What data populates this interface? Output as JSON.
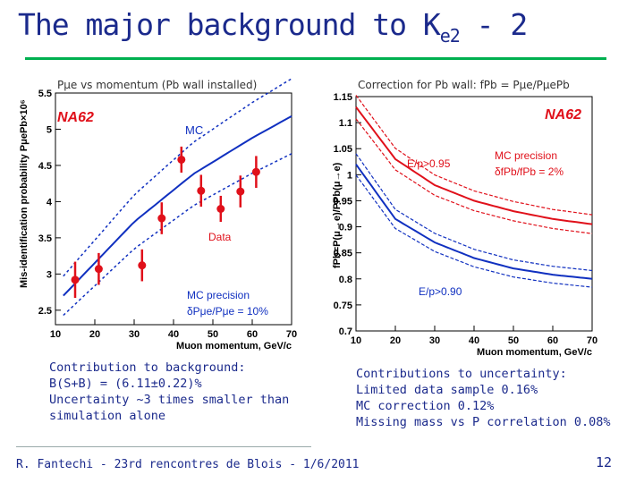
{
  "slide": {
    "title_main": "The major background to K",
    "title_sub": "e2",
    "title_end": " - 2",
    "left_caption": "Pμe vs momentum (Pb wall installed)",
    "right_caption": "Correction for Pb wall: fPb = Pμe/PμePb",
    "left_notes": [
      "Contribution to background:",
      "B(S+B) = (6.11±0.22)%",
      "Uncertainty ~3 times smaller than",
      "simulation alone"
    ],
    "right_notes": [
      "Contributions to uncertainty:",
      "Limited data sample 0.16%",
      "MC correction 0.12%",
      "Missing mass vs P correlation 0.08%"
    ],
    "footer": "R. Fantechi - 23rd rencontres de Blois - 1/6/2011",
    "page_number": "12"
  },
  "colors": {
    "title": "#1b2a8c",
    "rule": "#00b050",
    "data": "#e0101a",
    "mc": "#1030c0"
  },
  "chart_data": [
    {
      "type": "scatter",
      "title": "Pμe vs momentum (Pb wall installed)",
      "ylabel": "Mis-identification probability PμePb×10⁶",
      "xlabel": "Muon momentum, GeV/c",
      "xlim": [
        10,
        70
      ],
      "ylim": [
        2.3,
        5.5
      ],
      "xticks": [
        "10",
        "20",
        "30",
        "40",
        "50",
        "60",
        "70"
      ],
      "yticks": [
        "2.5",
        "3",
        "3.5",
        "4",
        "4.5",
        "5",
        "5.5"
      ],
      "brand": "NA62",
      "mc_label": "MC",
      "data_label": "Data",
      "precision_label_1": "MC precision",
      "precision_label_2": "δPμe/Pμe = 10%",
      "series": [
        {
          "name": "Data",
          "x": [
            15,
            21,
            32,
            37,
            42,
            47,
            52,
            57,
            61
          ],
          "y": [
            2.92,
            3.07,
            3.12,
            3.77,
            4.58,
            4.15,
            3.9,
            4.14,
            4.41
          ],
          "err": [
            0.25,
            0.22,
            0.22,
            0.22,
            0.18,
            0.22,
            0.18,
            0.22,
            0.22
          ]
        },
        {
          "name": "MC",
          "x": [
            12,
            30,
            45,
            60,
            70
          ],
          "y": [
            2.7,
            3.72,
            4.38,
            4.88,
            5.18
          ]
        }
      ]
    },
    {
      "type": "line",
      "title": "Correction for Pb wall: fPb = Pμe/PμePb",
      "ylabel": "fPb=P(μ→e)/PPb(μ→e)",
      "xlabel": "Muon momentum, GeV/c",
      "xlim": [
        10,
        70
      ],
      "ylim": [
        0.7,
        1.15
      ],
      "xticks": [
        "10",
        "20",
        "30",
        "40",
        "50",
        "60",
        "70"
      ],
      "yticks": [
        "0.7",
        "0.75",
        "0.8",
        "0.85",
        "0.9",
        "0.95",
        "1",
        "1.05",
        "1.1",
        "1.15"
      ],
      "brand": "NA62",
      "precision_label_1": "MC precision",
      "precision_label_2": "δfPb/fPb = 2%",
      "series": [
        {
          "name": "E/p>0.95",
          "x": [
            10,
            20,
            30,
            40,
            50,
            60,
            70
          ],
          "y": [
            1.13,
            1.03,
            0.98,
            0.95,
            0.93,
            0.915,
            0.905
          ]
        },
        {
          "name": "E/p>0.90",
          "x": [
            10,
            20,
            30,
            40,
            50,
            60,
            70
          ],
          "y": [
            1.02,
            0.915,
            0.87,
            0.84,
            0.82,
            0.808,
            0.8
          ]
        }
      ]
    }
  ]
}
